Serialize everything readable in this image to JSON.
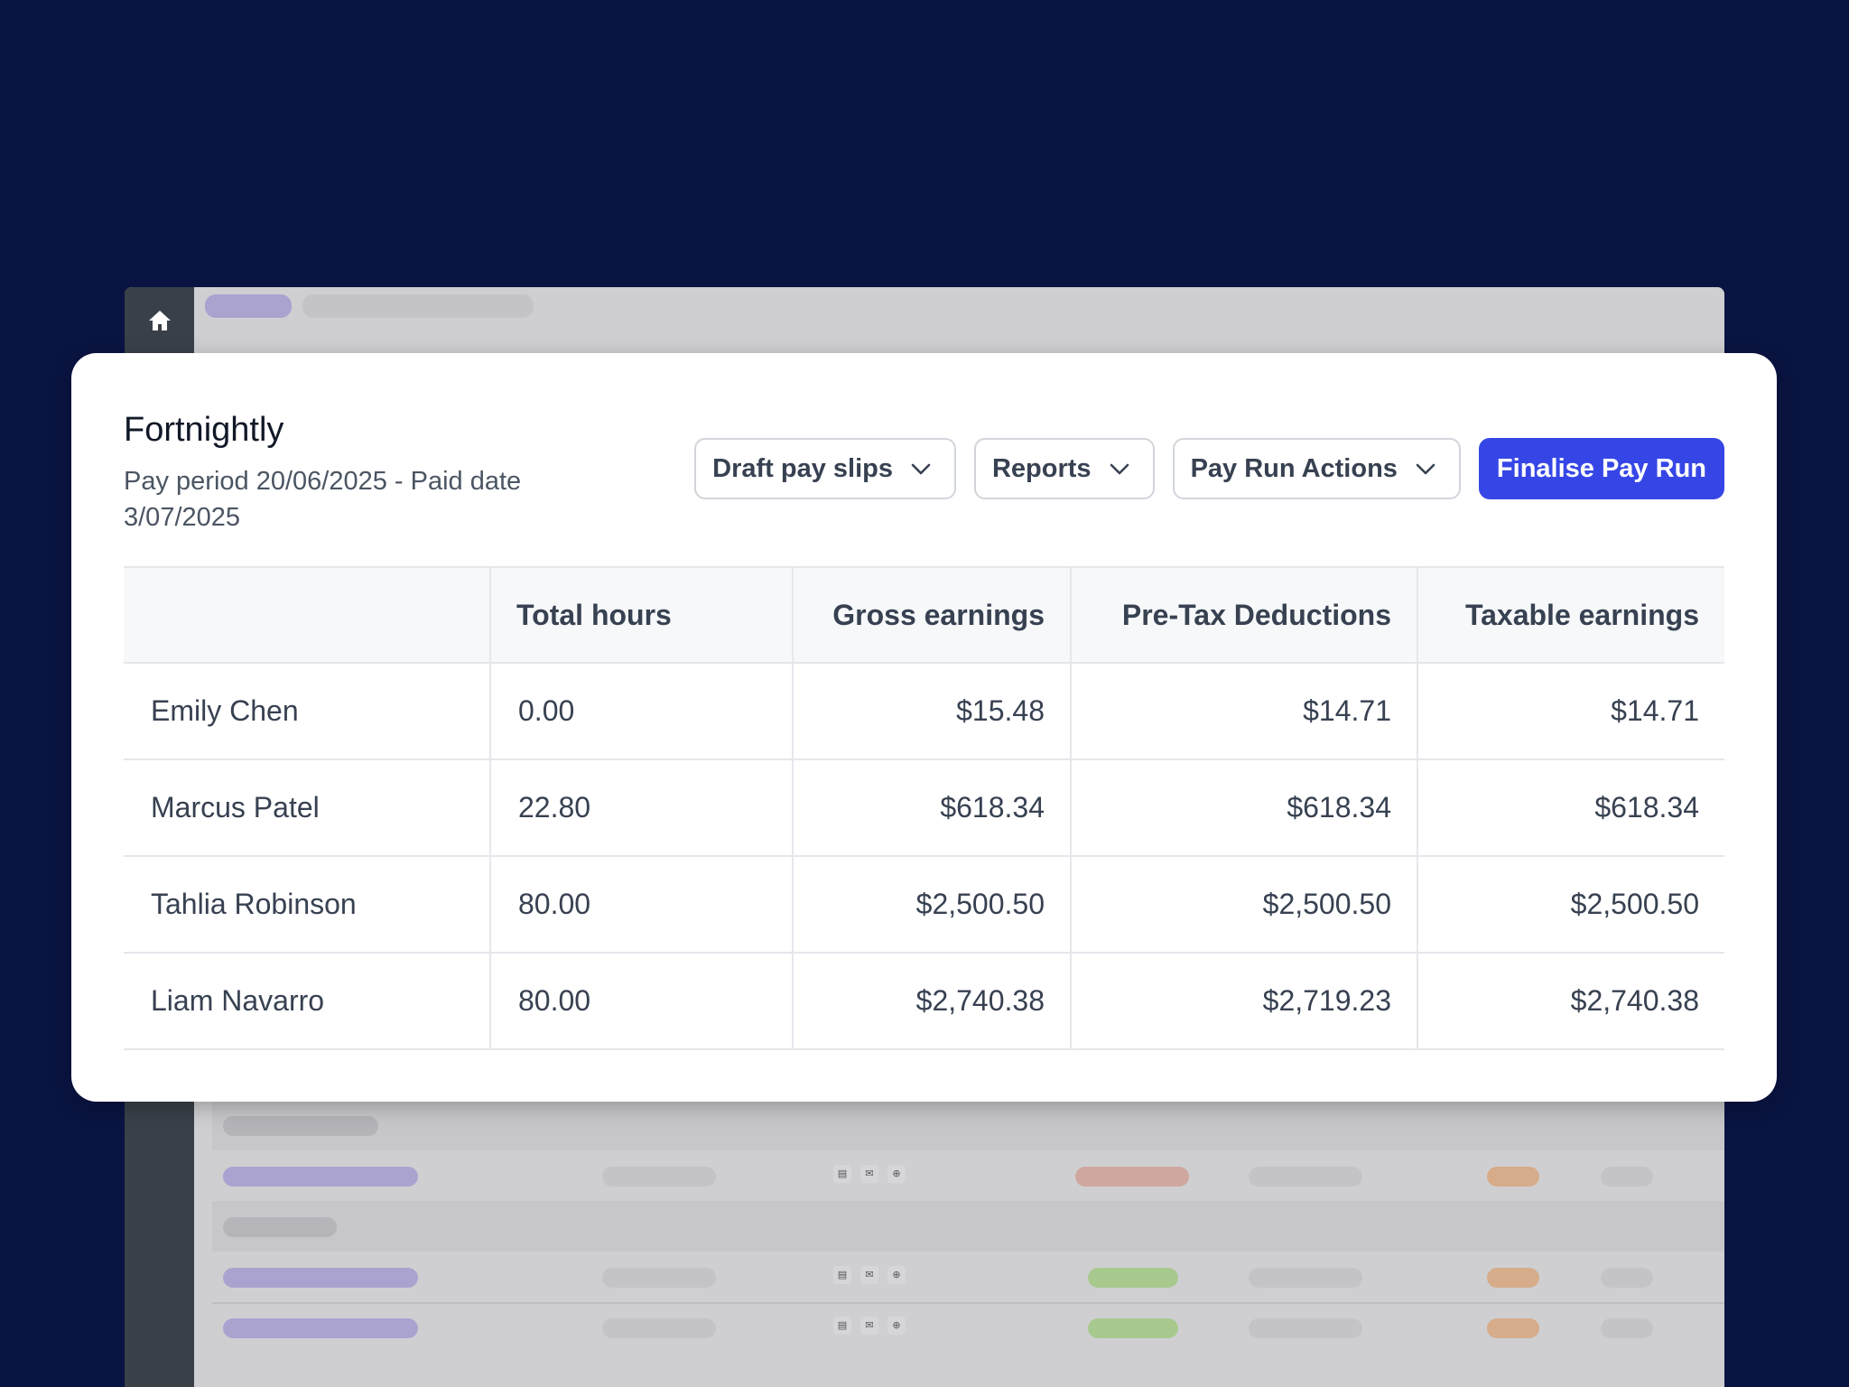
{
  "header": {
    "title": "Fortnightly",
    "subtitle": "Pay period 20/06/2025 - Paid date 3/07/2025"
  },
  "actions": {
    "draft_pay_slips": "Draft pay slips",
    "reports": "Reports",
    "pay_run_actions": "Pay Run Actions",
    "finalise": "Finalise Pay Run"
  },
  "table": {
    "columns": [
      "",
      "Total hours",
      "Gross earnings",
      "Pre-Tax Deductions",
      "Taxable earnings"
    ],
    "rows": [
      {
        "name": "Emily Chen",
        "hours": "0.00",
        "gross": "$15.48",
        "pretax": "$14.71",
        "taxable": "$14.71"
      },
      {
        "name": "Marcus Patel",
        "hours": "22.80",
        "gross": "$618.34",
        "pretax": "$618.34",
        "taxable": "$618.34"
      },
      {
        "name": "Tahlia Robinson",
        "hours": "80.00",
        "gross": "$2,500.50",
        "pretax": "$2,500.50",
        "taxable": "$2,500.50"
      },
      {
        "name": "Liam Navarro",
        "hours": "80.00",
        "gross": "$2,740.38",
        "pretax": "$2,719.23",
        "taxable": "$2,740.38"
      }
    ]
  },
  "colors": {
    "background": "#0a1442",
    "primary_button": "#3646e6",
    "placeholder_purple": "#aaa3cf",
    "placeholder_red": "#cfa79f",
    "placeholder_green": "#a8c98e",
    "placeholder_orange": "#d6ac8a"
  },
  "icons": {
    "home": "home-icon",
    "dropdown": "chevron-down-icon"
  }
}
